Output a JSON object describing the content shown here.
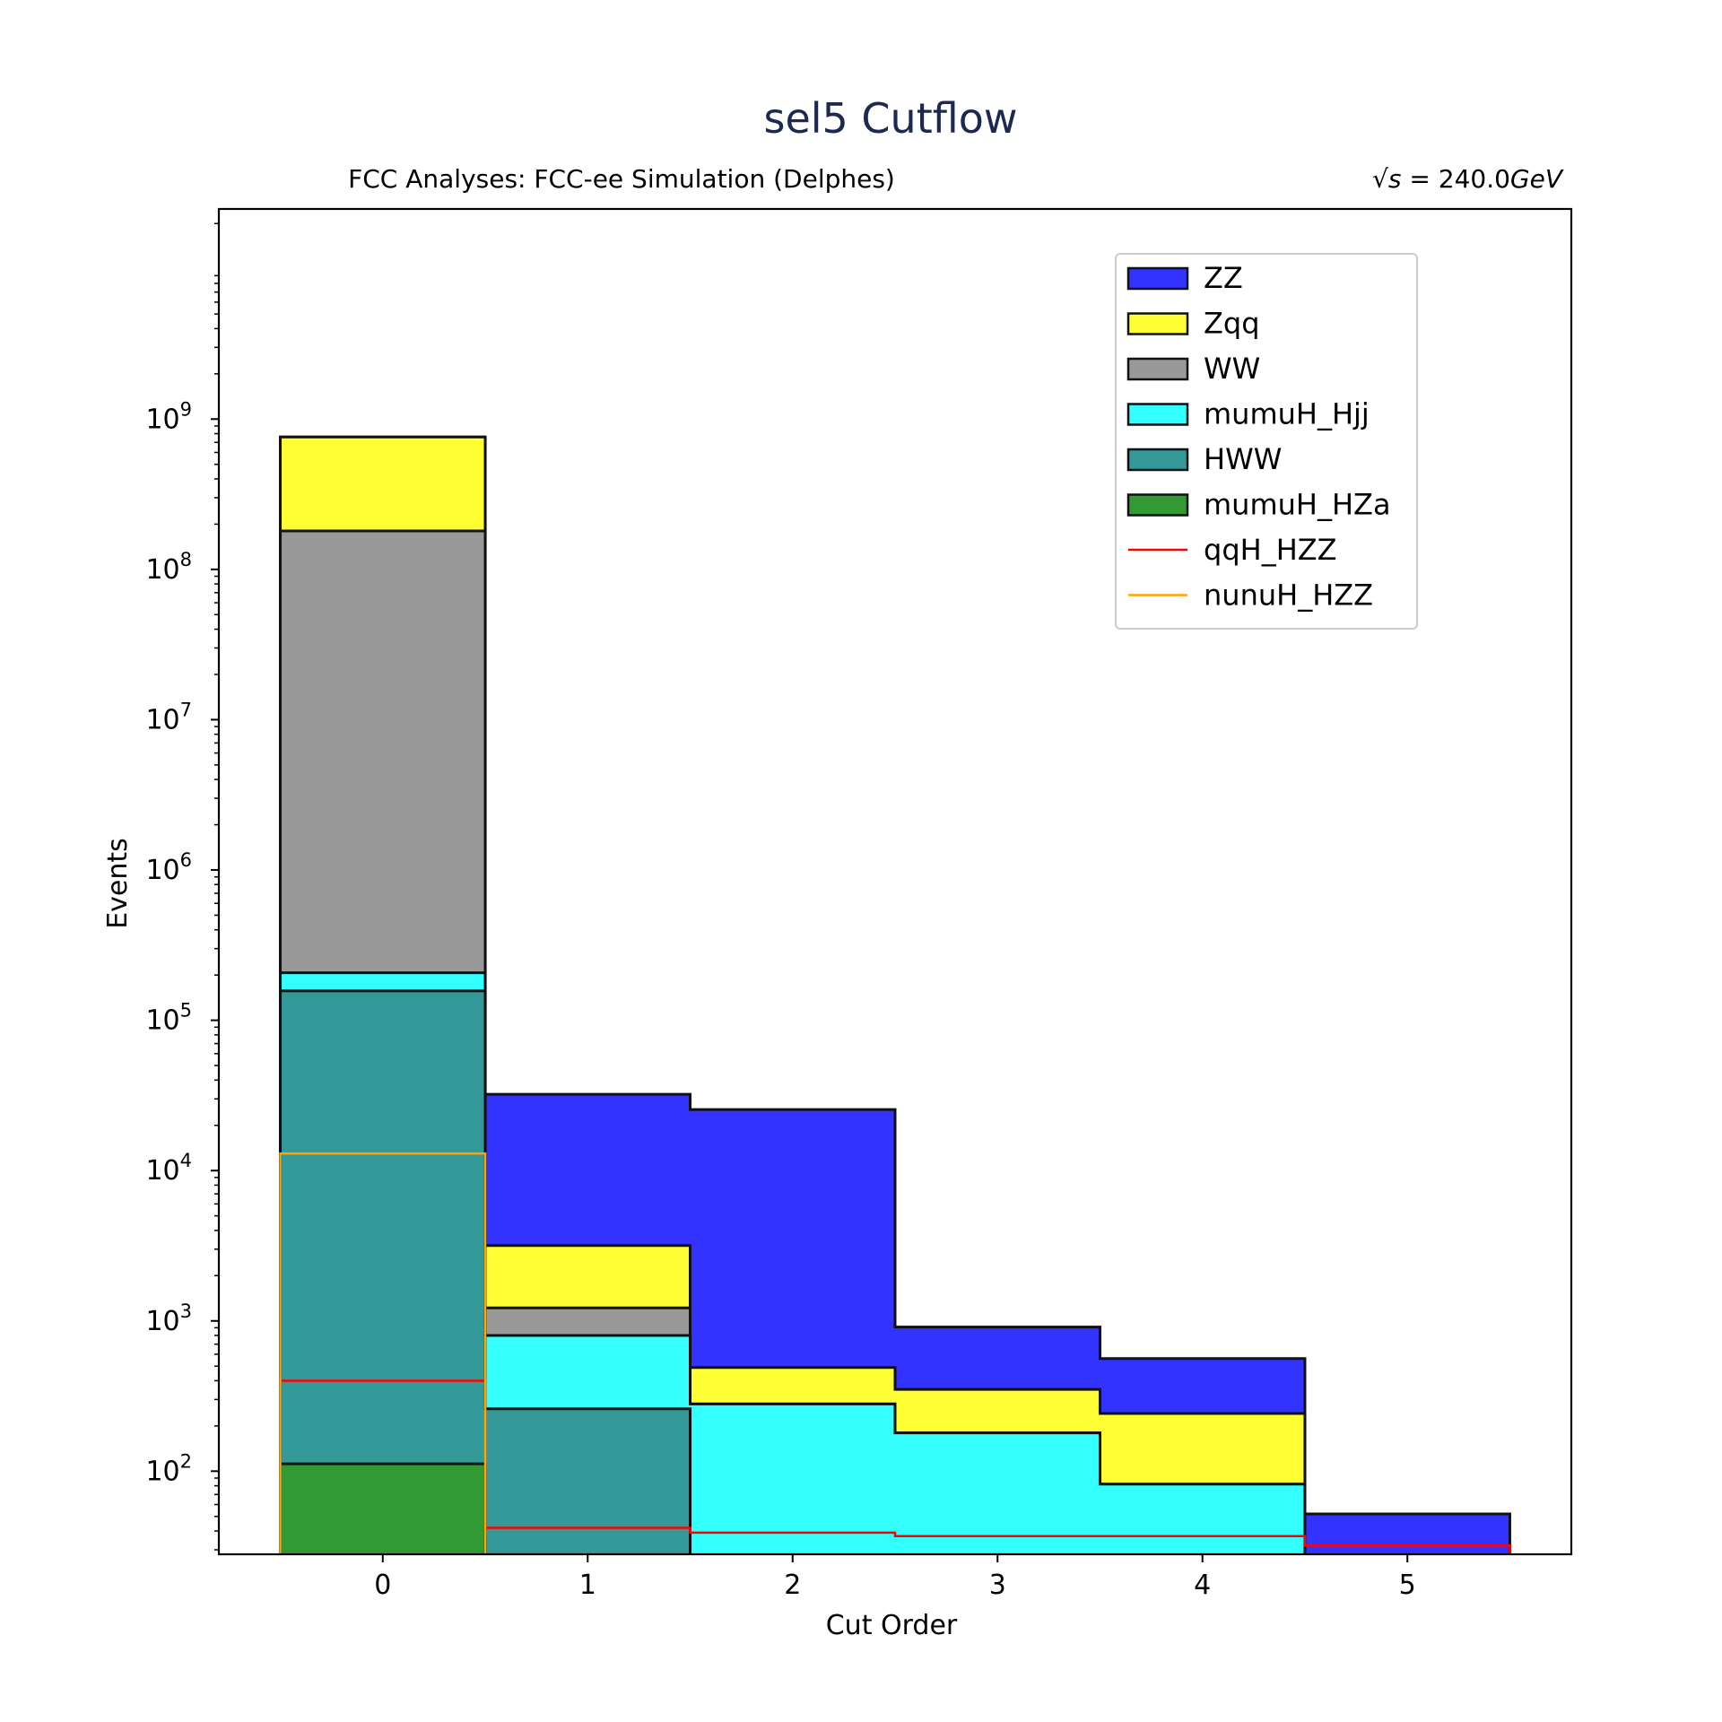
{
  "chart_data": {
    "type": "bar",
    "stacked": true,
    "title": "sel5 Cutflow",
    "subtitle_left": "FCC Analyses: FCC-ee Simulation (Delphes)",
    "subtitle_right_prefix": "√",
    "subtitle_right_var": "s",
    "subtitle_right_value": " = 240.0",
    "subtitle_right_unit": "GeV",
    "xlabel": "Cut Order",
    "ylabel": "Events",
    "yscale": "log",
    "ylim": [
      28,
      25000000000
    ],
    "xlim": [
      -0.8,
      5.8
    ],
    "x": [
      0,
      1,
      2,
      3,
      4,
      5
    ],
    "x_tick_labels": [
      "0",
      "1",
      "2",
      "3",
      "4",
      "5"
    ],
    "y_tick_labels": [
      {
        "base": "10",
        "exp": "2",
        "value": 100
      },
      {
        "base": "10",
        "exp": "3",
        "value": 1000
      },
      {
        "base": "10",
        "exp": "4",
        "value": 10000
      },
      {
        "base": "10",
        "exp": "5",
        "value": 100000
      },
      {
        "base": "10",
        "exp": "6",
        "value": 1000000
      },
      {
        "base": "10",
        "exp": "7",
        "value": 10000000
      },
      {
        "base": "10",
        "exp": "8",
        "value": 100000000
      },
      {
        "base": "10",
        "exp": "9",
        "value": 1000000000
      }
    ],
    "grid": false,
    "legend_position": "top-right",
    "stack_order": [
      "mumuH_HZa",
      "HWW",
      "mumuH_Hjj",
      "WW",
      "Zqq",
      "ZZ"
    ],
    "series": [
      {
        "name": "ZZ",
        "kind": "stacked",
        "color": "#3333ff",
        "values": [
          0,
          29000,
          25000,
          560,
          320,
          52
        ]
      },
      {
        "name": "Zqq",
        "kind": "stacked",
        "color": "#ffff33",
        "values": [
          580000000,
          1950,
          210,
          170,
          160,
          0
        ]
      },
      {
        "name": "WW",
        "kind": "stacked",
        "color": "#999999",
        "values": [
          180000000,
          420,
          0,
          0,
          0,
          0
        ]
      },
      {
        "name": "mumuH_Hjj",
        "kind": "stacked",
        "color": "#33ffff",
        "values": [
          50000,
          540,
          280,
          180,
          82,
          0
        ]
      },
      {
        "name": "HWW",
        "kind": "stacked",
        "color": "#339999",
        "values": [
          157000,
          260,
          0,
          0,
          0,
          0
        ]
      },
      {
        "name": "mumuH_HZa",
        "kind": "stacked",
        "color": "#339933",
        "values": [
          112,
          0,
          0,
          0,
          0,
          0
        ]
      },
      {
        "name": "qqH_HZZ",
        "kind": "line",
        "color": "#ff0000",
        "values": [
          400,
          42,
          39,
          37,
          37,
          32
        ]
      },
      {
        "name": "nunuH_HZZ",
        "kind": "line",
        "color": "#ffa500",
        "values": [
          13000,
          0,
          0,
          0,
          0,
          0
        ]
      }
    ]
  }
}
